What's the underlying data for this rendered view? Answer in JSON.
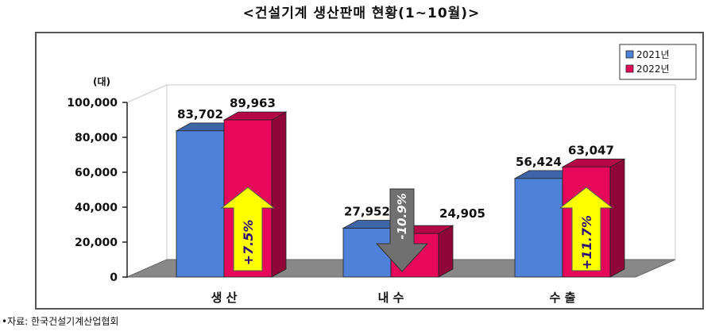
{
  "title": "<건설기계 생산판매 현황(1~10월)>",
  "source": "•자료: 한국건설기계산업협회",
  "colors": {
    "series_2021": "#4F81D8",
    "series_2022": "#E8085A",
    "arrow_up": "#FFFF00",
    "arrow_down": "#707070",
    "floor": "#888888"
  },
  "chart_data": {
    "type": "bar",
    "unit_label": "(대)",
    "categories": [
      "생 산",
      "내 수",
      "수 출"
    ],
    "series": [
      {
        "name": "2021년",
        "values": [
          83702,
          27952,
          56424
        ],
        "labels": [
          "83,702",
          "27,952",
          "56,424"
        ]
      },
      {
        "name": "2022년",
        "values": [
          89963,
          24905,
          63047
        ],
        "labels": [
          "89,963",
          "24,905",
          "63,047"
        ]
      }
    ],
    "ylim": [
      0,
      100000
    ],
    "yticks": [
      0,
      20000,
      40000,
      60000,
      80000,
      100000
    ],
    "ytick_labels": [
      "0",
      "20,000",
      "40,000",
      "60,000",
      "80,000",
      "100,000"
    ],
    "change_labels": [
      "+7.5%",
      "-10.9%",
      "+11.7%"
    ],
    "change_direction": [
      "up",
      "down",
      "up"
    ],
    "legend_position": "top-right",
    "grid": false
  }
}
